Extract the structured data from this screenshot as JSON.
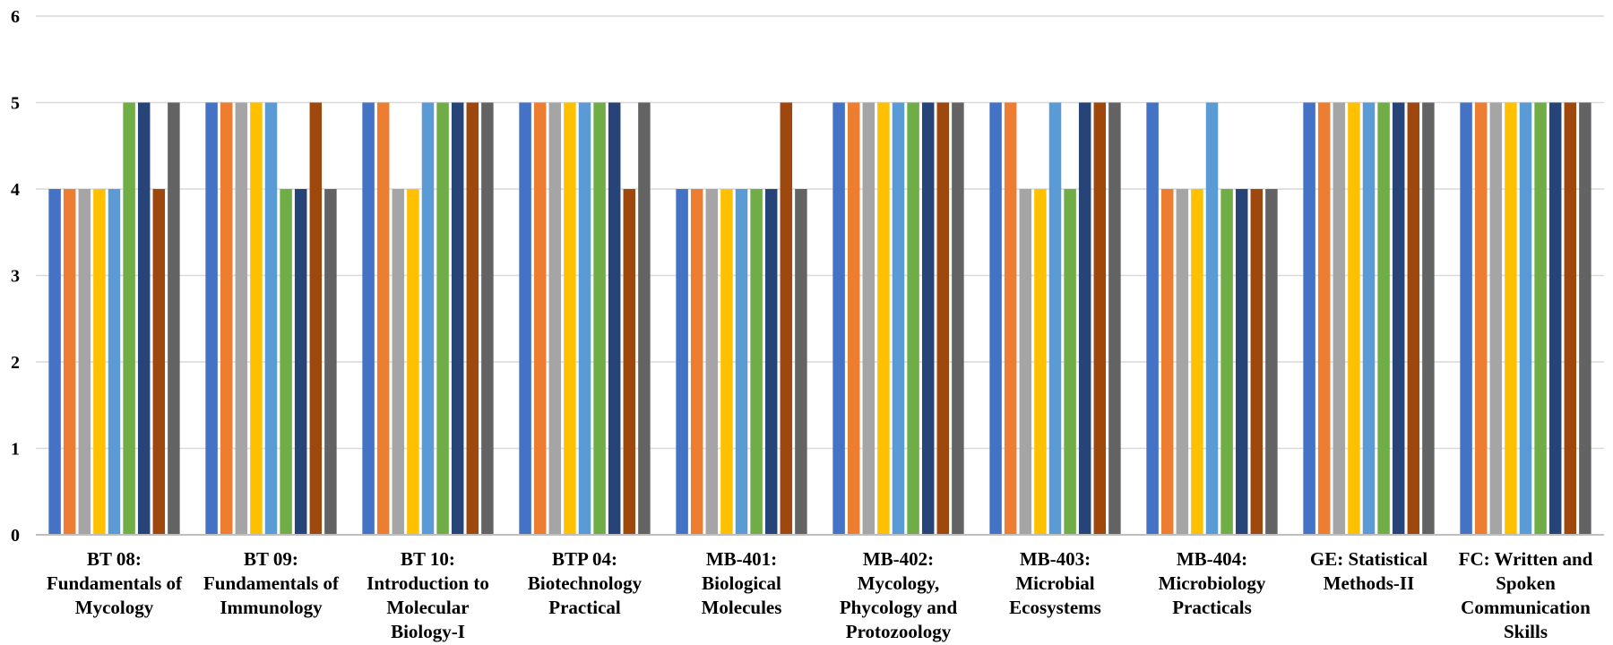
{
  "chart_data": {
    "type": "bar",
    "title": "",
    "xlabel": "",
    "ylabel": "",
    "ylim": [
      0,
      6
    ],
    "yticks": [
      "0",
      "1",
      "2",
      "3",
      "4",
      "5",
      "6"
    ],
    "grid": true,
    "legend": "none",
    "categories": [
      "BT 08:\nFundamentals of\nMycology",
      "BT 09:\nFundamentals of\nImmunology",
      "BT 10:\nIntroduction to\nMolecular\nBiology-I",
      "BTP 04:\nBiotechnology\nPractical",
      "MB-401:\nBiological\nMolecules",
      "MB-402:\nMycology,\nPhycology and\nProtozoology",
      "MB-403:\nMicrobial\nEcosystems",
      "MB-404:\nMicrobiology\nPracticals",
      "GE: Statistical\nMethods-II",
      "FC: Written and\nSpoken\nCommunication\nSkills"
    ],
    "colors": [
      "#4472C4",
      "#ED7D31",
      "#A5A5A5",
      "#FFC000",
      "#5B9BD5",
      "#70AD47",
      "#264478",
      "#9E480E",
      "#636363"
    ],
    "series": [
      {
        "values": [
          4,
          5,
          5,
          5,
          4,
          5,
          5,
          5,
          5,
          5
        ]
      },
      {
        "values": [
          4,
          5,
          5,
          5,
          4,
          5,
          5,
          4,
          5,
          5
        ]
      },
      {
        "values": [
          4,
          5,
          4,
          5,
          4,
          5,
          4,
          4,
          5,
          5
        ]
      },
      {
        "values": [
          4,
          5,
          4,
          5,
          4,
          5,
          4,
          4,
          5,
          5
        ]
      },
      {
        "values": [
          4,
          5,
          5,
          5,
          4,
          5,
          5,
          5,
          5,
          5
        ]
      },
      {
        "values": [
          5,
          4,
          5,
          5,
          4,
          5,
          4,
          4,
          5,
          5
        ]
      },
      {
        "values": [
          5,
          4,
          5,
          5,
          4,
          5,
          5,
          4,
          5,
          5
        ]
      },
      {
        "values": [
          4,
          5,
          5,
          4,
          5,
          5,
          5,
          4,
          5,
          5
        ]
      },
      {
        "values": [
          5,
          4,
          5,
          5,
          4,
          5,
          5,
          4,
          5,
          5
        ]
      }
    ]
  }
}
